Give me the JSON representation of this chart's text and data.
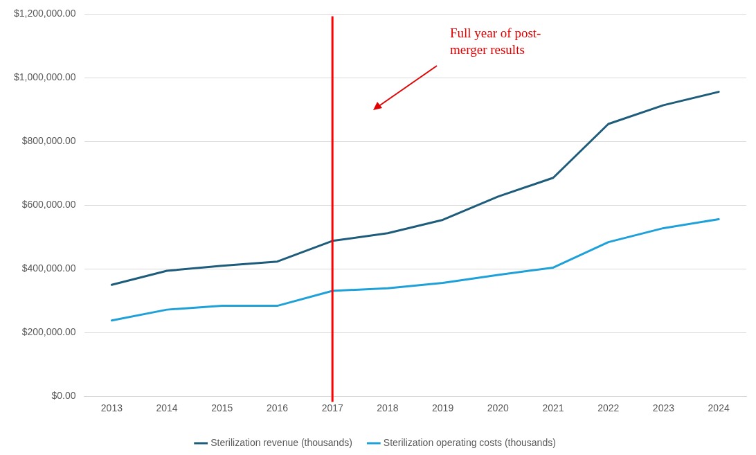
{
  "chart_data": {
    "type": "line",
    "categories": [
      "2013",
      "2014",
      "2015",
      "2016",
      "2017",
      "2018",
      "2019",
      "2020",
      "2021",
      "2022",
      "2023",
      "2024"
    ],
    "series": [
      {
        "name": "Sterilization revenue (thousands)",
        "color": "#1d5c7a",
        "values": [
          350000,
          394000,
          410000,
          423000,
          488000,
          512000,
          554000,
          627000,
          686000,
          855000,
          914000,
          956000
        ]
      },
      {
        "name": "Sterilization operating costs (thousands)",
        "color": "#1ea0d8",
        "values": [
          238000,
          272000,
          284000,
          284000,
          331000,
          339000,
          356000,
          381000,
          404000,
          484000,
          528000,
          556000
        ]
      }
    ],
    "ylim": [
      0,
      1200000
    ],
    "yticks": [
      {
        "value": 0,
        "label": "$0.00"
      },
      {
        "value": 200000,
        "label": "$200,000.00"
      },
      {
        "value": 400000,
        "label": "$400,000.00"
      },
      {
        "value": 600000,
        "label": "$600,000.00"
      },
      {
        "value": 800000,
        "label": "$800,000.00"
      },
      {
        "value": 1000000,
        "label": "$1,000,000.00"
      },
      {
        "value": 1200000,
        "label": "$1,200,000.00"
      }
    ],
    "ref_lines": [
      {
        "axis": "x",
        "value": "2017",
        "color": "#ff0000"
      }
    ],
    "annotations": [
      "Full year of post-merger results"
    ],
    "grid": "y",
    "legend": "bottom",
    "marker": "none",
    "line_style": "solid"
  }
}
